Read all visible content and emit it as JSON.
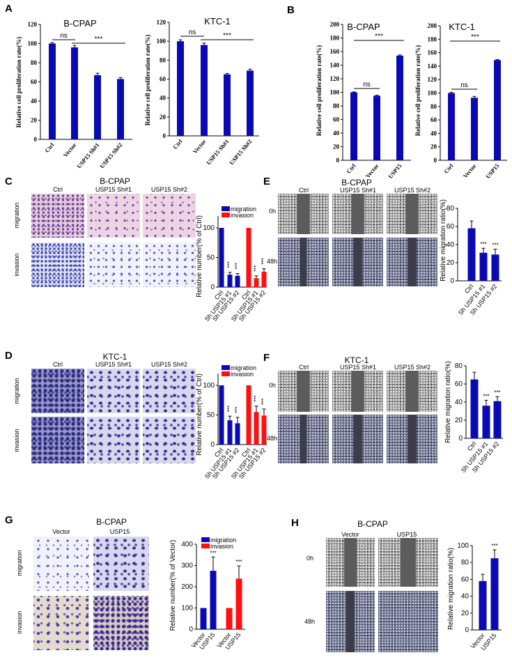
{
  "colors": {
    "blue": "#0a0ab4",
    "red": "#ff1010"
  },
  "panels": {
    "A": {
      "letter": "A"
    },
    "B": {
      "letter": "B"
    },
    "C": {
      "letter": "C",
      "title": "B-CPAP",
      "columns": [
        "Ctrl",
        "USP15 Sh#1",
        "USP15 Sh#2"
      ],
      "rows": [
        "migration",
        "invasion"
      ]
    },
    "D": {
      "letter": "D",
      "title": "KTC-1",
      "columns": [
        "Ctrl",
        "USP15 Sh#1",
        "USP15 Sh#2"
      ],
      "rows": [
        "migration",
        "invasion"
      ]
    },
    "E": {
      "letter": "E",
      "title": "B-CPAP",
      "columns": [
        "Ctrl",
        "USP15 Sh#1",
        "USP15 Sh#2"
      ],
      "rows": [
        "0h",
        "48h"
      ]
    },
    "F": {
      "letter": "F",
      "title": "KTC-1",
      "columns": [
        "Ctrl",
        "USP15 Sh#1",
        "USP15 Sh#2"
      ],
      "rows": [
        "0h",
        "48h"
      ]
    },
    "G": {
      "letter": "G",
      "title": "B-CPAP",
      "columns": [
        "Vector",
        "USP15"
      ],
      "rows": [
        "migration",
        "invasion"
      ]
    },
    "H": {
      "letter": "H",
      "title": "B-CPAP",
      "columns": [
        "Vector",
        "USP15"
      ],
      "rows": [
        "0h",
        "48h"
      ]
    }
  },
  "chart_data": [
    {
      "panel": "A",
      "type": "bar",
      "title": "B-CPAP",
      "ylabel": "Relative cell proliferation rate(%)",
      "ylim": [
        0,
        120
      ],
      "yticks": [
        0,
        20,
        40,
        60,
        80,
        100,
        120
      ],
      "categories": [
        "Ctrl",
        "Vector",
        "USP15 Sh#1",
        "USP15 Sh#2"
      ],
      "series": [
        {
          "values": [
            100,
            96,
            67,
            63
          ],
          "errors": [
            1,
            2,
            2,
            1.5
          ],
          "color": "#0a0ab4"
        }
      ],
      "annotations": [
        {
          "from": 0,
          "to": 1,
          "label": "ns"
        },
        {
          "from": 1,
          "to": 3,
          "label": "***"
        }
      ]
    },
    {
      "panel": "A",
      "type": "bar",
      "title": "KTC-1",
      "ylabel": "Relative cell proliferation rate(%)",
      "ylim": [
        0,
        120
      ],
      "yticks": [
        0,
        20,
        40,
        60,
        80,
        100,
        120
      ],
      "categories": [
        "Ctrl",
        "Vector",
        "USP15 Sh#1",
        "USP15 Sh#2"
      ],
      "series": [
        {
          "values": [
            100,
            96,
            65,
            69
          ],
          "errors": [
            1.5,
            2,
            1,
            1.5
          ],
          "color": "#0a0ab4"
        }
      ],
      "annotations": [
        {
          "from": 0,
          "to": 1,
          "label": "ns"
        },
        {
          "from": 1,
          "to": 3,
          "label": "***"
        }
      ]
    },
    {
      "panel": "B",
      "type": "bar",
      "title": "B-CPAP",
      "ylabel": "Relative cell proliferation rate(%)",
      "ylim": [
        0,
        200
      ],
      "yticks": [
        0,
        20,
        40,
        60,
        80,
        100,
        120,
        140,
        160,
        180,
        200
      ],
      "categories": [
        "Ctrl",
        "Vector",
        "USP15"
      ],
      "series": [
        {
          "values": [
            100,
            95,
            154
          ],
          "errors": [
            0.5,
            0.8,
            1
          ],
          "color": "#0a0ab4"
        }
      ],
      "annotations": [
        {
          "from": 0,
          "to": 2,
          "label": "***"
        },
        {
          "from": 0,
          "to": 1,
          "label": "ns"
        }
      ]
    },
    {
      "panel": "B",
      "type": "bar",
      "title": "KTC-1",
      "ylabel": "Relative cell proliferation rate(%)",
      "ylim": [
        0,
        200
      ],
      "yticks": [
        0,
        20,
        40,
        60,
        80,
        100,
        120,
        140,
        160,
        180,
        200
      ],
      "categories": [
        "Ctrl",
        "Vector",
        "USP15"
      ],
      "series": [
        {
          "values": [
            100,
            93,
            149
          ],
          "errors": [
            1,
            2,
            0.8
          ],
          "color": "#0a0ab4"
        }
      ],
      "annotations": [
        {
          "from": 0,
          "to": 2,
          "label": "***"
        },
        {
          "from": 0,
          "to": 1,
          "label": "ns"
        }
      ]
    },
    {
      "panel": "C",
      "type": "bar",
      "ylabel": "Relative number(% of Ctrl)",
      "ylim": [
        0,
        120
      ],
      "yticks": [
        0,
        50,
        100
      ],
      "categories": [
        "Ctrl",
        "Sh USP15 #1",
        "Sh USP15 #2"
      ],
      "series": [
        {
          "name": "migration",
          "values": [
            100,
            21,
            19
          ],
          "errors": [
            0,
            4,
            4
          ],
          "significance": [
            "",
            "***",
            "***"
          ],
          "color": "#0a0ab4"
        },
        {
          "name": "invasion",
          "values": [
            100,
            15,
            26
          ],
          "errors": [
            0,
            4,
            5
          ],
          "significance": [
            "",
            "***",
            "***"
          ],
          "color": "#ff1010"
        }
      ],
      "legend": "top"
    },
    {
      "panel": "E",
      "type": "bar",
      "ylabel": "Relative  migration ratio(%)",
      "ylim": [
        0,
        80
      ],
      "yticks": [
        0,
        20,
        40,
        60,
        80
      ],
      "categories": [
        "Ctrl",
        "Sh USP15 #1",
        "Sh USP15 #2"
      ],
      "series": [
        {
          "values": [
            58,
            31,
            29
          ],
          "errors": [
            8,
            5,
            6
          ],
          "significance": [
            "",
            "***",
            "***"
          ],
          "color": "#0a0ab4"
        }
      ]
    },
    {
      "panel": "D",
      "type": "bar",
      "ylabel": "Relative number(% of Ctrl)",
      "ylim": [
        0,
        120
      ],
      "yticks": [
        0,
        50,
        100
      ],
      "categories": [
        "Ctrl",
        "Sh USP15 #1",
        "Sh USP15 #2"
      ],
      "series": [
        {
          "name": "migration",
          "values": [
            100,
            41,
            36
          ],
          "errors": [
            0,
            7,
            10
          ],
          "significance": [
            "",
            "***",
            "***"
          ],
          "color": "#0a0ab4"
        },
        {
          "name": "invasion",
          "values": [
            100,
            55,
            49
          ],
          "errors": [
            0,
            10,
            11
          ],
          "significance": [
            "",
            "***",
            "***"
          ],
          "color": "#ff1010"
        }
      ],
      "legend": "top"
    },
    {
      "panel": "F",
      "type": "bar",
      "ylabel": "Relative  migration ratio(%)",
      "ylim": [
        0,
        80
      ],
      "yticks": [
        0,
        20,
        40,
        60,
        80
      ],
      "categories": [
        "Ctrl",
        "Sh USP15 #1",
        "Sh USP15 #2"
      ],
      "series": [
        {
          "values": [
            65,
            36,
            41
          ],
          "errors": [
            8,
            6,
            5
          ],
          "significance": [
            "",
            "***",
            "***"
          ],
          "color": "#0a0ab4"
        }
      ]
    },
    {
      "panel": "G",
      "type": "bar",
      "ylabel": "Relative number(% of Vector)",
      "ylim": [
        0,
        400
      ],
      "yticks": [
        0,
        100,
        200,
        300,
        400
      ],
      "categories": [
        "Vector",
        "USP15"
      ],
      "series": [
        {
          "name": "migration",
          "values": [
            100,
            275
          ],
          "errors": [
            0,
            65
          ],
          "significance": [
            "",
            "***"
          ],
          "color": "#0a0ab4"
        },
        {
          "name": "invasion",
          "values": [
            100,
            238
          ],
          "errors": [
            0,
            60
          ],
          "significance": [
            "",
            "***"
          ],
          "color": "#ff1010"
        }
      ],
      "legend": "top"
    },
    {
      "panel": "H",
      "type": "bar",
      "ylabel": "Relative  migration ratio(%)",
      "ylim": [
        0,
        100
      ],
      "yticks": [
        0,
        20,
        40,
        60,
        80,
        100
      ],
      "categories": [
        "Vector",
        "USP15"
      ],
      "series": [
        {
          "values": [
            58,
            85
          ],
          "errors": [
            8,
            10
          ],
          "significance": [
            "",
            "***"
          ],
          "color": "#0a0ab4"
        }
      ]
    }
  ]
}
